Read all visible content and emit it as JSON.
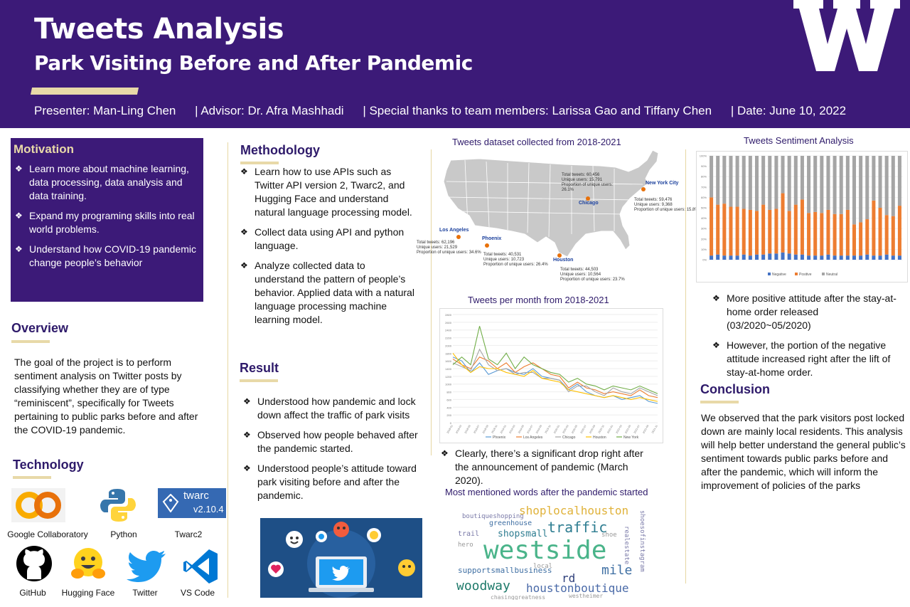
{
  "header": {
    "title": "Tweets Analysis",
    "subtitle": "Park Visiting Before and After Pandemic",
    "logo_letter": "W",
    "credits": [
      "Presenter: Man-Ling Chen",
      "| Advisor: Dr. Afra Mashhadi",
      "| Special thanks to team members: Larissa Gao and Tiffany Chen",
      "| Date:  June 10, 2022"
    ]
  },
  "motivation": {
    "title": "Motivation",
    "items": [
      "Learn more about machine learning, data processing, data analysis and data training.",
      "Expand my programing skills into real world problems.",
      "Understand how COVID-19 pandemic change people’s behavior"
    ]
  },
  "overview": {
    "title": "Overview",
    "text": "The goal of the project is to perform sentiment analysis on Twitter posts by classifying whether they are of type “reminiscent”, specifically for Tweets pertaining to public parks before and after the COVID-19 pandemic."
  },
  "technology": {
    "title": "Technology",
    "tools": [
      "Google Collaboratory",
      "Python",
      "Twarc2",
      "GitHub",
      "Hugging Face",
      "Twitter",
      "VS Code"
    ],
    "twarc_badge": "twarc",
    "twarc_version": "v2.10.4",
    "colab_icon": "colab-logo-icon",
    "python_icon": "python-logo-icon",
    "github_icon": "github-logo-icon",
    "hugging_icon": "hugging-face-icon",
    "twitter_icon": "twitter-bird-icon",
    "vscode_icon": "vscode-logo-icon"
  },
  "methodology": {
    "title": "Methodology",
    "items": [
      "Learn how to use APIs such as Twitter API version 2, Twarc2, and Hugging Face and understand natural language processing model.",
      "Collect data using API and python language.",
      "Analyze collected data to understand the pattern of people’s behavior. Applied data with a natural language processing machine learning model."
    ]
  },
  "result": {
    "title": "Result",
    "items": [
      "Understood how pandemic and lock down affect the traffic of park visits",
      "Observed how people behaved after the pandemic started.",
      "Understood people’s attitude toward park visiting before and after the pandemic."
    ]
  },
  "map": {
    "title": "Tweets dataset collected from 2018-2021",
    "cities": [
      {
        "name": "New York City",
        "lines": [
          "Total tweets: 59,476",
          "Unique users: 9,368",
          "Proportion of unique users: 15.8%"
        ]
      },
      {
        "name": "Chicago",
        "lines": [
          "Total tweets: 60,456",
          "Unique users: 15,791",
          "Proportion of unique users: 26.1%"
        ]
      },
      {
        "name": "Los Angeles",
        "lines": [
          "Total tweets: 62,196",
          "Unique users: 21,529",
          "Proportion of unique users: 34.6%"
        ]
      },
      {
        "name": "Phoenix",
        "lines": [
          "Total tweets: 40,531",
          "Unique users: 10,723",
          "Proportion of unique users: 26.4%"
        ]
      },
      {
        "name": "Houston",
        "lines": [
          "Total tweets: 44,503",
          "Unique users: 10,564",
          "Proportion of unique users: 23.7%"
        ]
      }
    ]
  },
  "monthly": {
    "title": "Tweets per month from 2018-2021",
    "note": "Clearly, there’s a significant drop right after the announcement of pandemic (March 2020)."
  },
  "wordcloud": {
    "title": "Most mentioned words after the pandemic started",
    "words": [
      "westside",
      "traffic",
      "shoplocalhouston",
      "houstonboutique",
      "woodway",
      "mile",
      "rd",
      "shopsmall",
      "supportsmallbusiness",
      "greenhouse",
      "boutiqueshopping",
      "shoe",
      "realestate",
      "trail",
      "hero",
      "shoesofinstagram",
      "westheimer",
      "chasinggreatness",
      "local"
    ]
  },
  "sentiment": {
    "title": "Tweets Sentiment Analysis",
    "notes": [
      "More positive attitude after the stay-at-home order released (03/2020~05/2020)",
      "However, the portion of the negative attitude increased right after the lift of stay-at-home order."
    ]
  },
  "conclusion": {
    "title": "Conclusion",
    "text": "We observed that the park visitors post locked down are mainly local residents. This analysis will help better understand the general public’s sentiment towards public parks before and after the pandemic, which will inform the improvement of policies of the parks"
  },
  "chart_data": [
    {
      "type": "line",
      "title": "Tweets per month from 2018-2021",
      "ylim": [
        0,
        2800
      ],
      "x": [
        "2018-01",
        "2018-03",
        "2018-05",
        "2018-07",
        "2018-09",
        "2018-11",
        "2019-01",
        "2019-03",
        "2019-05",
        "2019-07",
        "2019-09",
        "2019-11",
        "2020-01",
        "2020-03",
        "2020-05",
        "2020-07",
        "2020-09",
        "2020-11",
        "2021-01",
        "2021-03",
        "2021-05",
        "2021-07",
        "2021-09",
        "2021-11"
      ],
      "series": [
        {
          "name": "Phoenix",
          "color": "#5b9bd5",
          "values": [
            1700,
            1600,
            1300,
            1550,
            1250,
            1350,
            1400,
            1300,
            1250,
            1400,
            1200,
            1150,
            1100,
            850,
            1000,
            800,
            700,
            650,
            700,
            600,
            650,
            700,
            550,
            500
          ]
        },
        {
          "name": "Los Angeles",
          "color": "#ed7d31",
          "values": [
            1650,
            1500,
            1400,
            1700,
            1600,
            1400,
            1550,
            1300,
            1450,
            1550,
            1400,
            1250,
            1200,
            900,
            1050,
            900,
            850,
            750,
            800,
            750,
            700,
            850,
            700,
            650
          ]
        },
        {
          "name": "Chicago",
          "color": "#a5a5a5",
          "values": [
            1550,
            1450,
            1350,
            1900,
            1500,
            1350,
            1400,
            1250,
            1300,
            1300,
            1150,
            1150,
            1100,
            800,
            950,
            950,
            800,
            700,
            900,
            800,
            750,
            900,
            800,
            700
          ]
        },
        {
          "name": "Houston",
          "color": "#ffc000",
          "values": [
            1800,
            1500,
            1300,
            1450,
            1400,
            1400,
            1300,
            1250,
            1200,
            1350,
            1150,
            1100,
            1050,
            850,
            800,
            750,
            700,
            650,
            700,
            650,
            600,
            650,
            600,
            550
          ]
        },
        {
          "name": "New York",
          "color": "#70ad47",
          "values": [
            1500,
            1700,
            1500,
            2500,
            1650,
            1500,
            1800,
            1400,
            1700,
            1500,
            1400,
            1300,
            1250,
            1050,
            1150,
            1000,
            950,
            850,
            950,
            900,
            850,
            950,
            850,
            750
          ]
        }
      ]
    },
    {
      "type": "bar",
      "title": "Tweets Sentiment Analysis",
      "ylim": [
        0,
        100
      ],
      "ylabel": "%",
      "x_count": 30,
      "series": [
        {
          "name": "Negative",
          "color": "#4472c4",
          "values": [
            4,
            5,
            4,
            4,
            4,
            5,
            4,
            5,
            5,
            6,
            6,
            7,
            6,
            5,
            5,
            4,
            4,
            4,
            5,
            4,
            4,
            4,
            4,
            4,
            5,
            4,
            4,
            5,
            4,
            4
          ]
        },
        {
          "name": "Positive",
          "color": "#ed7d31",
          "values": [
            56,
            48,
            50,
            47,
            47,
            44,
            44,
            42,
            48,
            42,
            43,
            57,
            41,
            48,
            53,
            41,
            42,
            41,
            43,
            40,
            40,
            44,
            30,
            32,
            34,
            53,
            46,
            38,
            38,
            48
          ]
        },
        {
          "name": "Neutral",
          "color": "#a5a5a5",
          "values": [
            40,
            47,
            46,
            49,
            49,
            51,
            52,
            53,
            47,
            52,
            51,
            36,
            53,
            47,
            42,
            55,
            54,
            55,
            52,
            56,
            56,
            52,
            66,
            64,
            61,
            43,
            50,
            57,
            58,
            48
          ]
        }
      ]
    }
  ]
}
